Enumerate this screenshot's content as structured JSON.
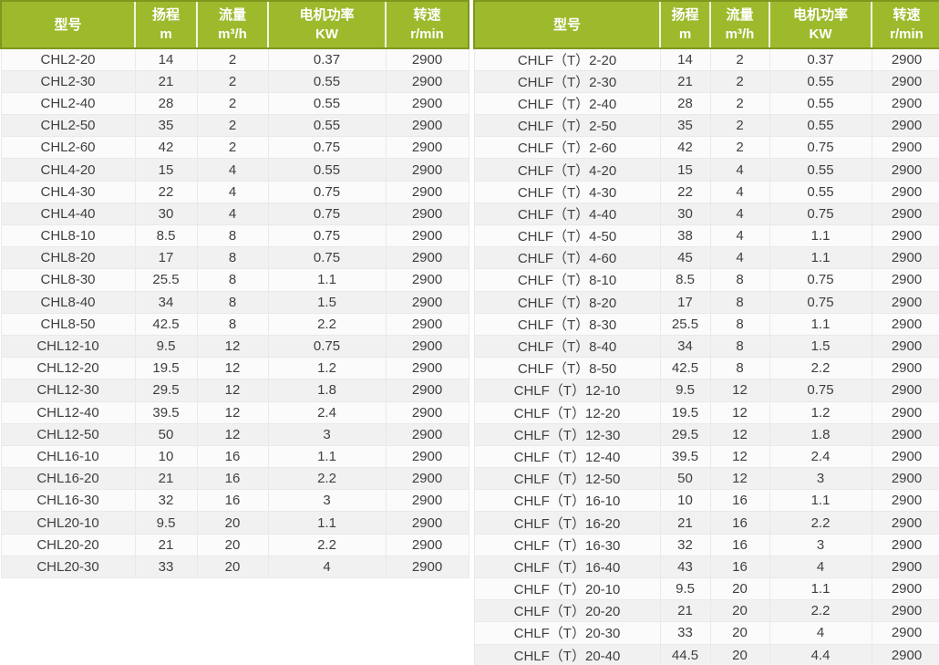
{
  "style": {
    "header_bg": "#9dba2c",
    "header_border": "#7e971f",
    "header_text": "#ffffff",
    "row_bg": "#fbfbfb",
    "row_alt_bg": "#f1f1f1",
    "cell_border": "#e9e9e9",
    "body_text": "#3f3f3f"
  },
  "tables": [
    {
      "id": "chl-series",
      "columns": [
        {
          "label": "型号",
          "unit": ""
        },
        {
          "label": "扬程",
          "unit": "m"
        },
        {
          "label": "流量",
          "unit": "m³/h"
        },
        {
          "label": "电机功率",
          "unit": "KW"
        },
        {
          "label": "转速",
          "unit": "r/min"
        }
      ],
      "rows": [
        [
          "CHL2-20",
          "14",
          "2",
          "0.37",
          "2900"
        ],
        [
          "CHL2-30",
          "21",
          "2",
          "0.55",
          "2900"
        ],
        [
          "CHL2-40",
          "28",
          "2",
          "0.55",
          "2900"
        ],
        [
          "CHL2-50",
          "35",
          "2",
          "0.55",
          "2900"
        ],
        [
          "CHL2-60",
          "42",
          "2",
          "0.75",
          "2900"
        ],
        [
          "CHL4-20",
          "15",
          "4",
          "0.55",
          "2900"
        ],
        [
          "CHL4-30",
          "22",
          "4",
          "0.75",
          "2900"
        ],
        [
          "CHL4-40",
          "30",
          "4",
          "0.75",
          "2900"
        ],
        [
          "CHL8-10",
          "8.5",
          "8",
          "0.75",
          "2900"
        ],
        [
          "CHL8-20",
          "17",
          "8",
          "0.75",
          "2900"
        ],
        [
          "CHL8-30",
          "25.5",
          "8",
          "1.1",
          "2900"
        ],
        [
          "CHL8-40",
          "34",
          "8",
          "1.5",
          "2900"
        ],
        [
          "CHL8-50",
          "42.5",
          "8",
          "2.2",
          "2900"
        ],
        [
          "CHL12-10",
          "9.5",
          "12",
          "0.75",
          "2900"
        ],
        [
          "CHL12-20",
          "19.5",
          "12",
          "1.2",
          "2900"
        ],
        [
          "CHL12-30",
          "29.5",
          "12",
          "1.8",
          "2900"
        ],
        [
          "CHL12-40",
          "39.5",
          "12",
          "2.4",
          "2900"
        ],
        [
          "CHL12-50",
          "50",
          "12",
          "3",
          "2900"
        ],
        [
          "CHL16-10",
          "10",
          "16",
          "1.1",
          "2900"
        ],
        [
          "CHL16-20",
          "21",
          "16",
          "2.2",
          "2900"
        ],
        [
          "CHL16-30",
          "32",
          "16",
          "3",
          "2900"
        ],
        [
          "CHL20-10",
          "9.5",
          "20",
          "1.1",
          "2900"
        ],
        [
          "CHL20-20",
          "21",
          "20",
          "2.2",
          "2900"
        ],
        [
          "CHL20-30",
          "33",
          "20",
          "4",
          "2900"
        ]
      ]
    },
    {
      "id": "chlf-t-series",
      "columns": [
        {
          "label": "型号",
          "unit": ""
        },
        {
          "label": "扬程",
          "unit": "m"
        },
        {
          "label": "流量",
          "unit": "m³/h"
        },
        {
          "label": "电机功率",
          "unit": "KW"
        },
        {
          "label": "转速",
          "unit": "r/min"
        }
      ],
      "rows": [
        [
          "CHLF（T）2-20",
          "14",
          "2",
          "0.37",
          "2900"
        ],
        [
          "CHLF（T）2-30",
          "21",
          "2",
          "0.55",
          "2900"
        ],
        [
          "CHLF（T）2-40",
          "28",
          "2",
          "0.55",
          "2900"
        ],
        [
          "CHLF（T）2-50",
          "35",
          "2",
          "0.55",
          "2900"
        ],
        [
          "CHLF（T）2-60",
          "42",
          "2",
          "0.75",
          "2900"
        ],
        [
          "CHLF（T）4-20",
          "15",
          "4",
          "0.55",
          "2900"
        ],
        [
          "CHLF（T）4-30",
          "22",
          "4",
          "0.55",
          "2900"
        ],
        [
          "CHLF（T）4-40",
          "30",
          "4",
          "0.75",
          "2900"
        ],
        [
          "CHLF（T）4-50",
          "38",
          "4",
          "1.1",
          "2900"
        ],
        [
          "CHLF（T）4-60",
          "45",
          "4",
          "1.1",
          "2900"
        ],
        [
          "CHLF（T）8-10",
          "8.5",
          "8",
          "0.75",
          "2900"
        ],
        [
          "CHLF（T）8-20",
          "17",
          "8",
          "0.75",
          "2900"
        ],
        [
          "CHLF（T）8-30",
          "25.5",
          "8",
          "1.1",
          "2900"
        ],
        [
          "CHLF（T）8-40",
          "34",
          "8",
          "1.5",
          "2900"
        ],
        [
          "CHLF（T）8-50",
          "42.5",
          "8",
          "2.2",
          "2900"
        ],
        [
          "CHLF（T）12-10",
          "9.5",
          "12",
          "0.75",
          "2900"
        ],
        [
          "CHLF（T）12-20",
          "19.5",
          "12",
          "1.2",
          "2900"
        ],
        [
          "CHLF（T）12-30",
          "29.5",
          "12",
          "1.8",
          "2900"
        ],
        [
          "CHLF（T）12-40",
          "39.5",
          "12",
          "2.4",
          "2900"
        ],
        [
          "CHLF（T）12-50",
          "50",
          "12",
          "3",
          "2900"
        ],
        [
          "CHLF（T）16-10",
          "10",
          "16",
          "1.1",
          "2900"
        ],
        [
          "CHLF（T）16-20",
          "21",
          "16",
          "2.2",
          "2900"
        ],
        [
          "CHLF（T）16-30",
          "32",
          "16",
          "3",
          "2900"
        ],
        [
          "CHLF（T）16-40",
          "43",
          "16",
          "4",
          "2900"
        ],
        [
          "CHLF（T）20-10",
          "9.5",
          "20",
          "1.1",
          "2900"
        ],
        [
          "CHLF（T）20-20",
          "21",
          "20",
          "2.2",
          "2900"
        ],
        [
          "CHLF（T）20-30",
          "33",
          "20",
          "4",
          "2900"
        ],
        [
          "CHLF（T）20-40",
          "44.5",
          "20",
          "4.4",
          "2900"
        ]
      ]
    }
  ]
}
